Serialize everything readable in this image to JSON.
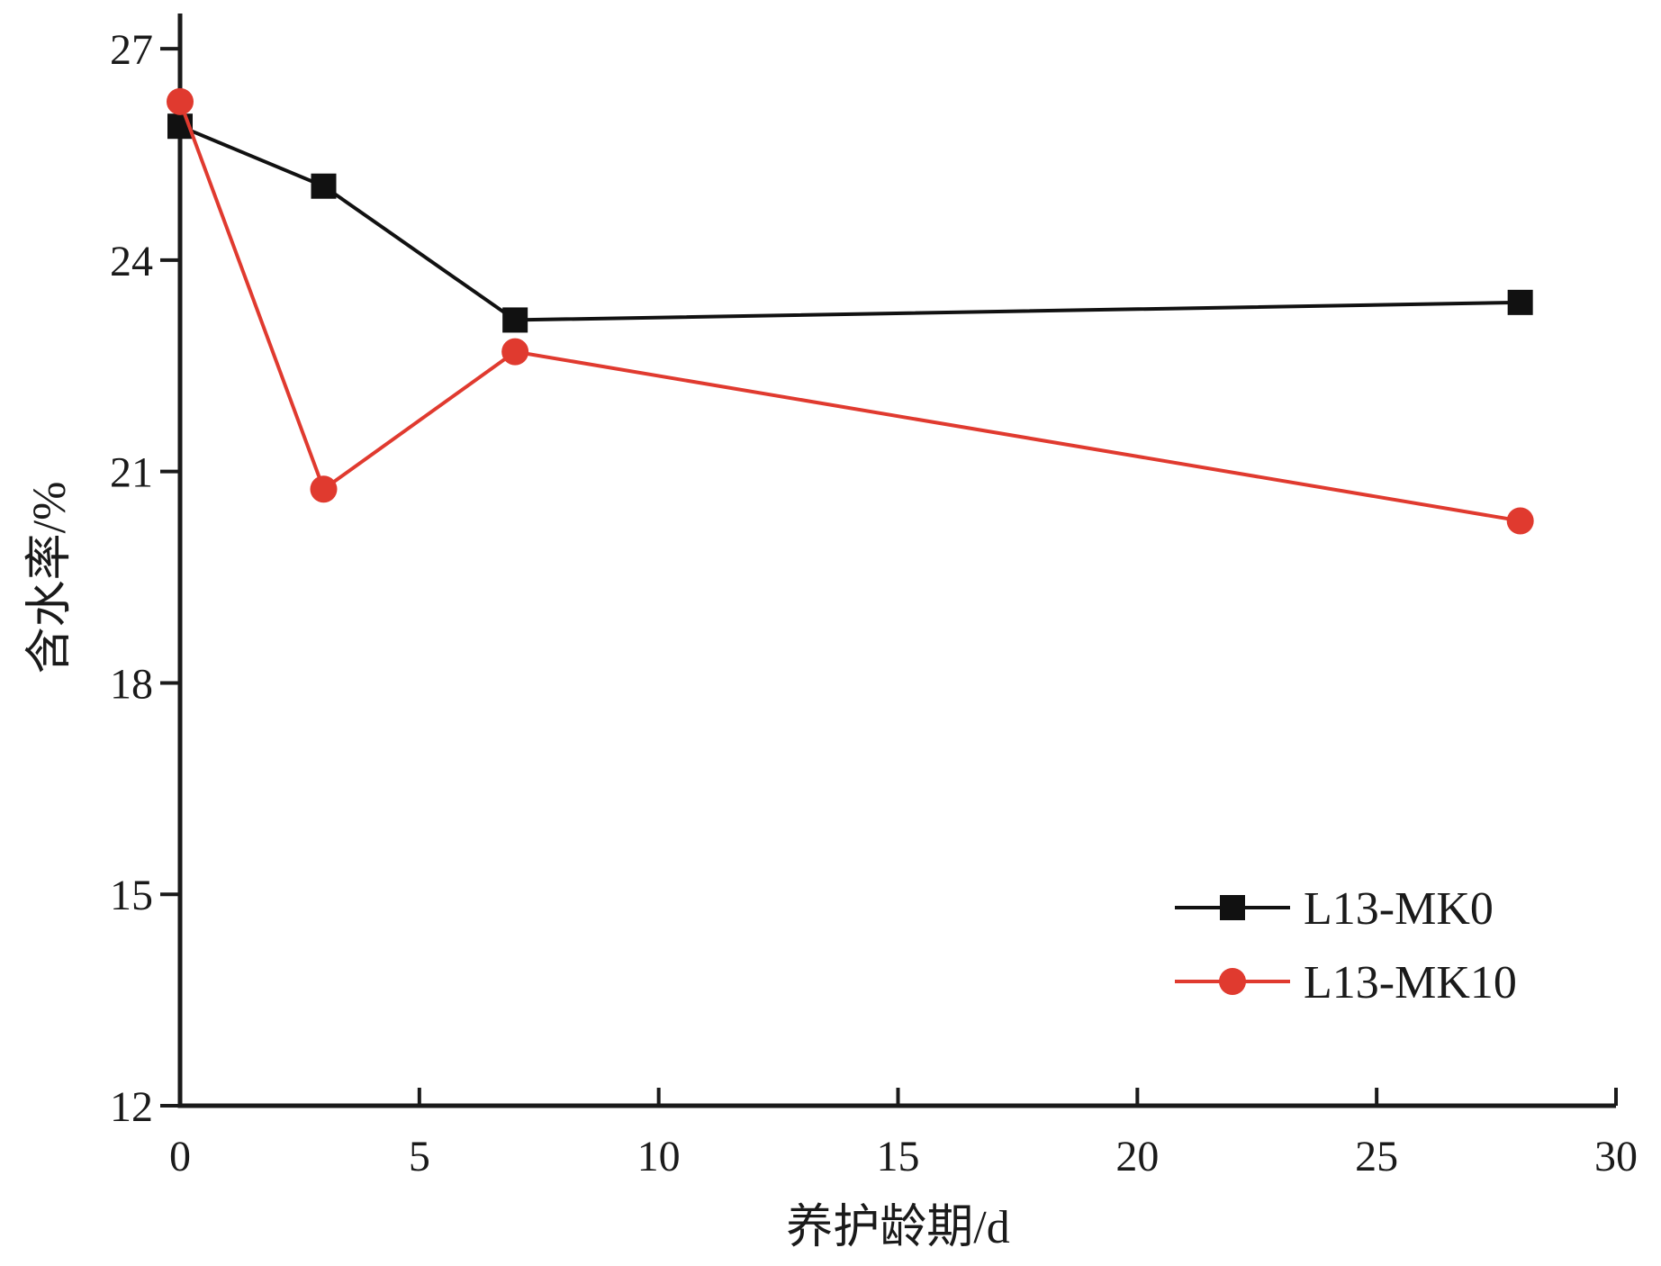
{
  "chart_data": {
    "type": "line",
    "xlabel": "养护龄期/d",
    "ylabel": "含水率/%",
    "xlim": [
      0,
      30
    ],
    "ylim": [
      12,
      27.5
    ],
    "xticks": [
      0,
      5,
      10,
      15,
      20,
      25,
      30
    ],
    "yticks": [
      12,
      15,
      18,
      21,
      24,
      27
    ],
    "legend_position": "bottom-right",
    "grid": false,
    "series": [
      {
        "name": "L13-MK0",
        "color": "#111111",
        "marker": "square",
        "x": [
          0,
          3,
          7,
          28
        ],
        "y": [
          25.9,
          25.05,
          23.15,
          23.4
        ]
      },
      {
        "name": "L13-MK10",
        "color": "#e03a2f",
        "marker": "circle",
        "x": [
          0,
          3,
          7,
          28
        ],
        "y": [
          26.25,
          20.75,
          22.7,
          20.3
        ]
      }
    ]
  }
}
